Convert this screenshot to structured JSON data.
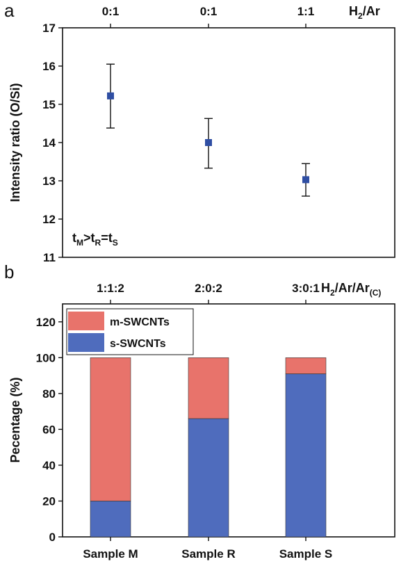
{
  "panels": {
    "a": {
      "label": "a"
    },
    "b": {
      "label": "b"
    }
  },
  "chart_data": [
    {
      "type": "scatter",
      "panel": "a",
      "ylabel": "Intensity ratio (O/Si)",
      "ylim": [
        11,
        17
      ],
      "yticks": [
        11,
        12,
        13,
        14,
        15,
        16,
        17
      ],
      "top_axis": {
        "label_main": "H",
        "label_sub": "2",
        "label_rest": "/Ar",
        "ticks": [
          "0:1",
          "0:1",
          "1:1"
        ]
      },
      "annotation": {
        "t1": "t",
        "s1": "M",
        "op1": ">",
        "t2": "t",
        "s2": "R",
        "op2": "=",
        "t3": "t",
        "s3": "S"
      },
      "marker_color": "#2f4ea3",
      "points": [
        {
          "y": 15.22,
          "err_low": 14.38,
          "err_high": 16.05
        },
        {
          "y": 14.0,
          "err_low": 13.33,
          "err_high": 14.63
        },
        {
          "y": 13.03,
          "err_low": 12.6,
          "err_high": 13.45
        }
      ]
    },
    {
      "type": "bar",
      "panel": "b",
      "ylabel": "Pecentage (%)",
      "ylim": [
        0,
        130
      ],
      "yticks": [
        0,
        20,
        40,
        60,
        80,
        100,
        120
      ],
      "categories": [
        "Sample M",
        "Sample R",
        "Sample S"
      ],
      "top_axis": {
        "label_main": "H",
        "label_sub": "2",
        "label_rest": "/Ar/Ar",
        "label_sub2": "(C)",
        "ticks": [
          "1:1:2",
          "2:0:2",
          "3:0:1"
        ]
      },
      "stacked": true,
      "series": [
        {
          "name": "s-SWCNTs",
          "color": "#4f6cbd",
          "values": [
            20,
            66,
            91
          ]
        },
        {
          "name": "m-SWCNTs",
          "color": "#e8736b",
          "values": [
            80,
            34,
            9
          ]
        }
      ],
      "legend_order": [
        "m-SWCNTs",
        "s-SWCNTs"
      ],
      "legend_position": "top-left"
    }
  ]
}
